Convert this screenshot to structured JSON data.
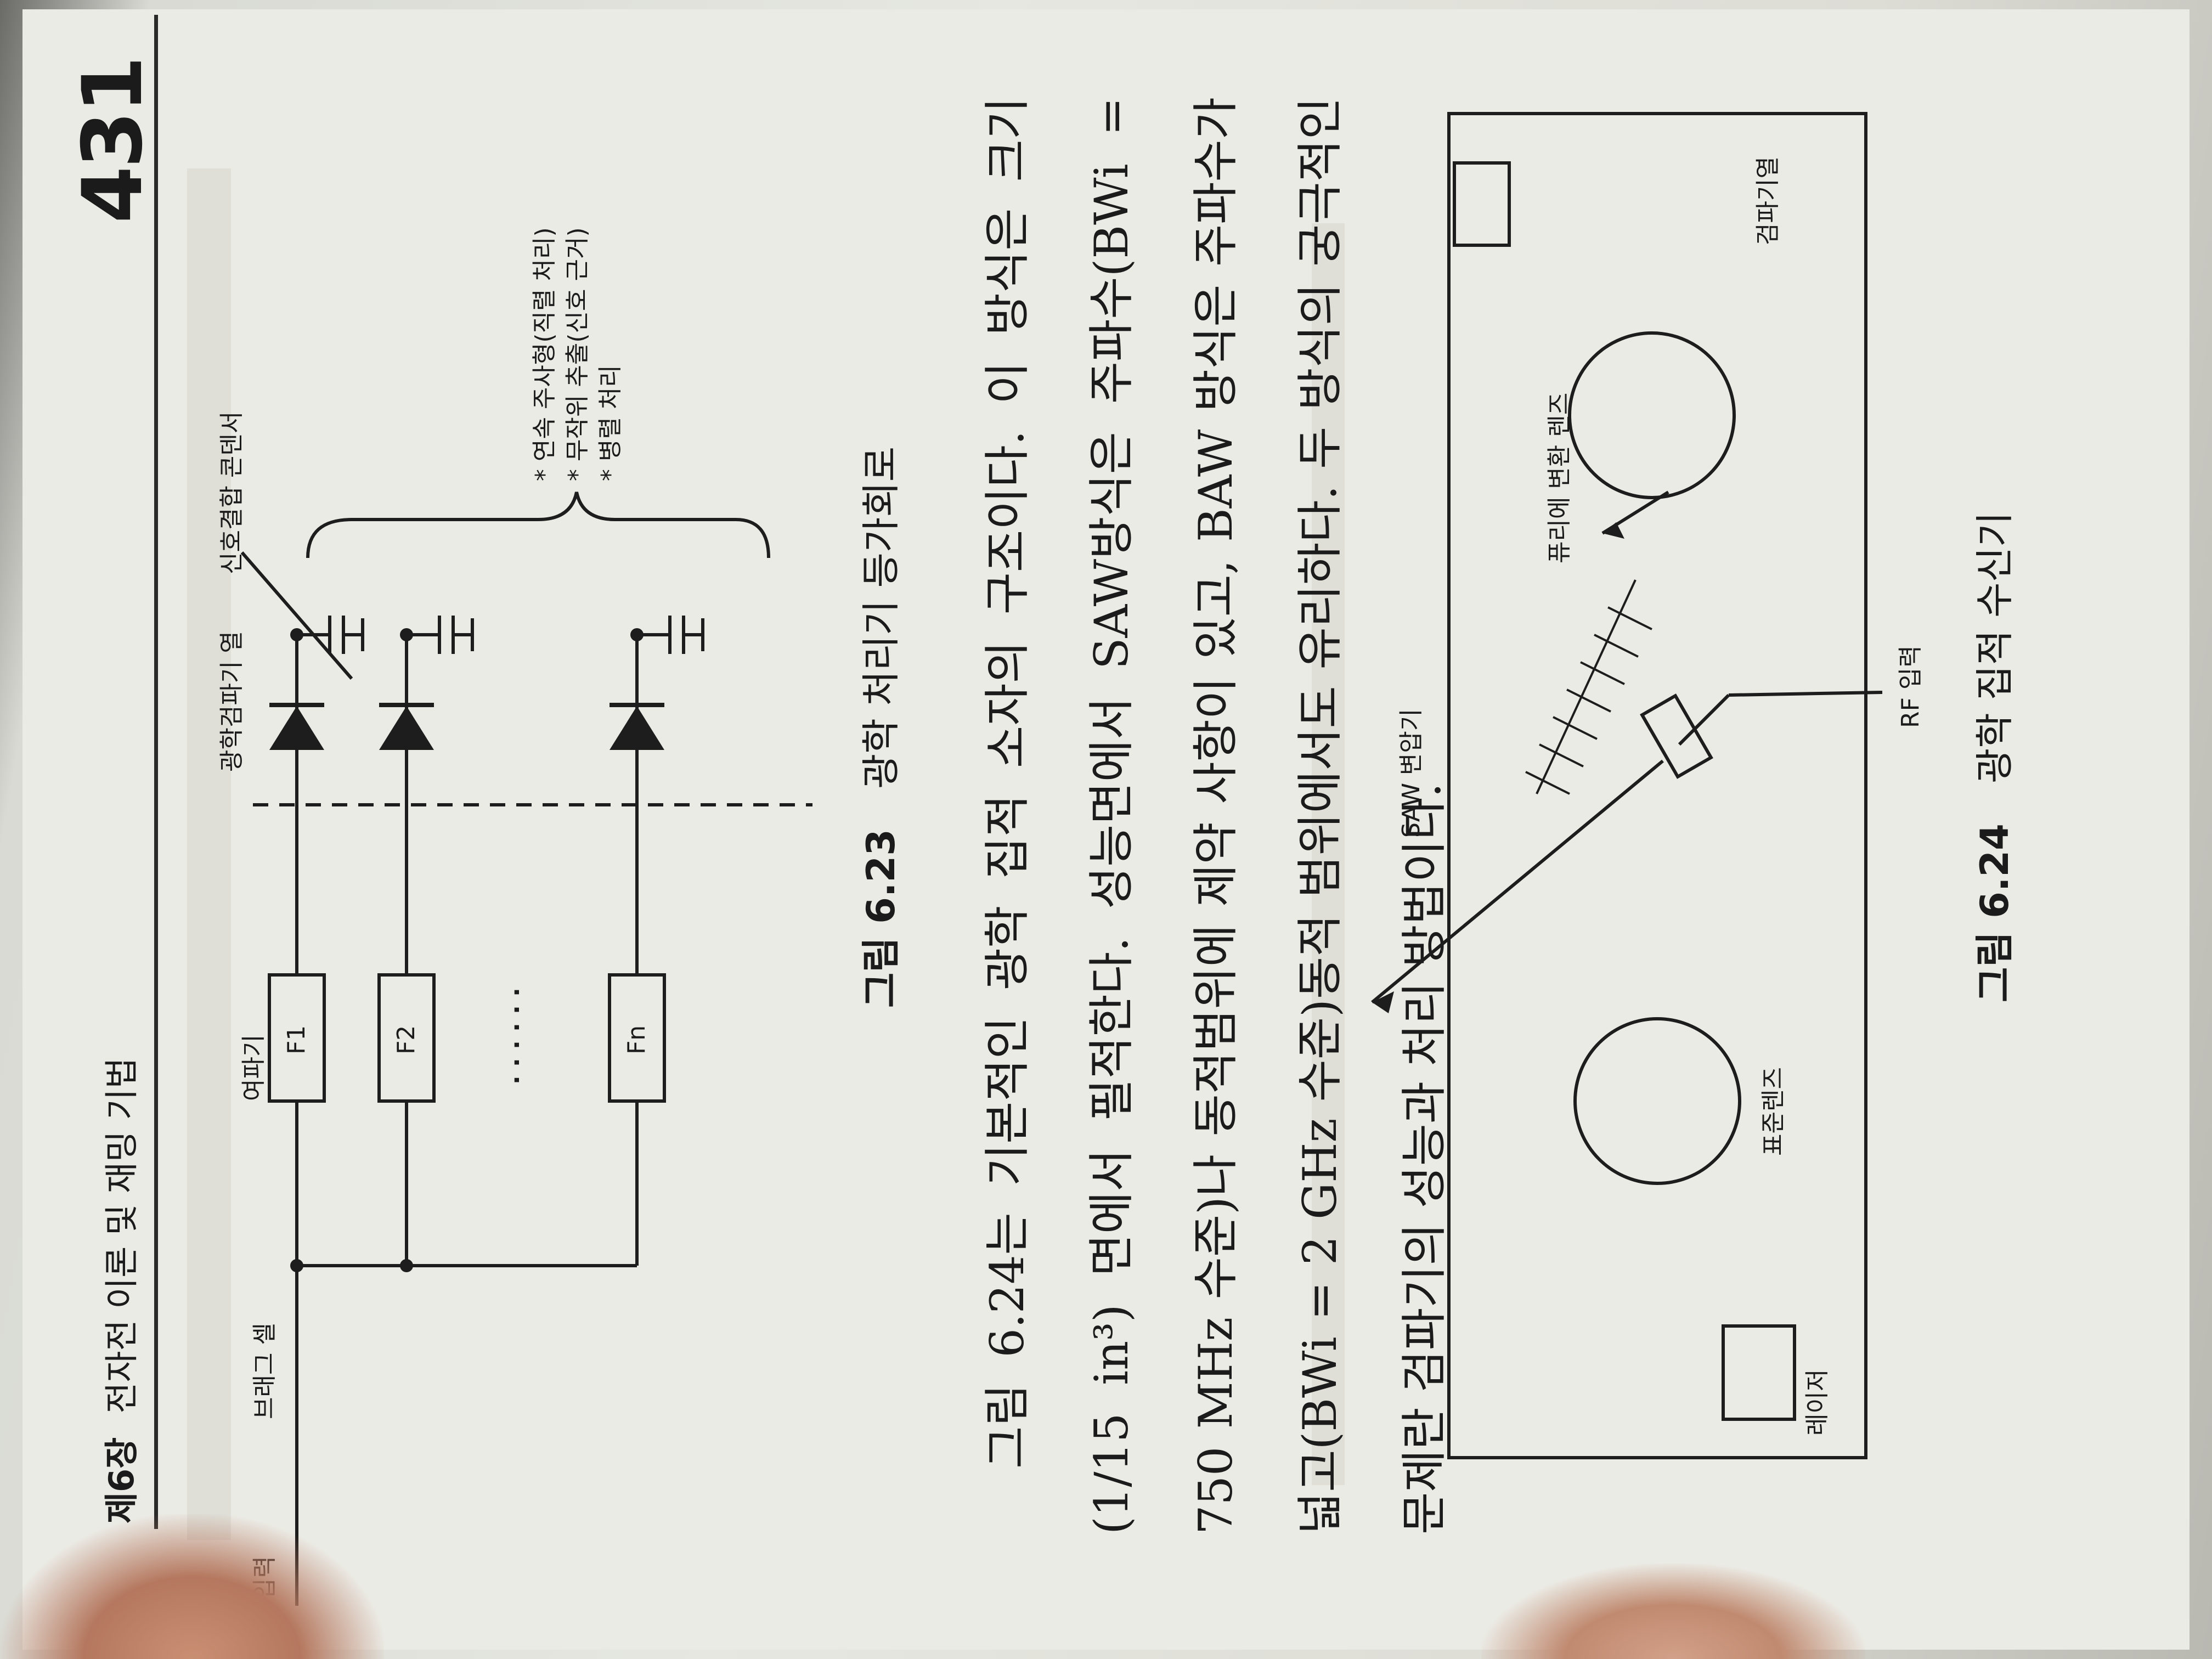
{
  "header": {
    "chapter": "제6장",
    "chapter_title": "전자전 이론 및 재밍 기법",
    "page_number": "431"
  },
  "figure_623": {
    "labels": {
      "input": "입력",
      "bragg_cell": "브래그 셀",
      "filter": "여파기",
      "photodetector_array": "광학검파기 열",
      "coupling_condenser": "신호결합 콘덴서",
      "filters": [
        "F1",
        "F2",
        "Fn"
      ],
      "ellipsis": "· · · · · ·"
    },
    "notes": [
      "* 연속 주사형(직렬 처리)",
      "* 무작위 추출(신호 근거)",
      "* 병렬 처리"
    ],
    "caption_number": "그림 6.23",
    "caption_title": "광학 처리기 등가회로"
  },
  "body": {
    "paragraph": "그림 6.24는 기본적인 광학 집적 소자의 구조이다. 이 방식은 크기(1/15 in³) 면에서 필적한다. 성능면에서 SAW방식은 주파수(BWi = 750 MHz 수준)나 동적범위에 제약 사항이 있고, BAW 방식은 주파수가 넓고(BWi = 2 GHz 수준)동적 범위에서도 유리하다. 두 방식의 궁극적인 문제란 검파기의 성능과 처리 방법이다."
  },
  "figure_624": {
    "labels": {
      "laser": "레이저",
      "standard_lens": "표준렌즈",
      "saw_transducer": "SAW 변압기",
      "rf_input": "RF 입력",
      "fourier_lens": "퓨리에 변환 렌즈",
      "detector_array": "검파기열"
    },
    "caption_number": "그림 6.24",
    "caption_title": "광학 집적 수신기"
  }
}
